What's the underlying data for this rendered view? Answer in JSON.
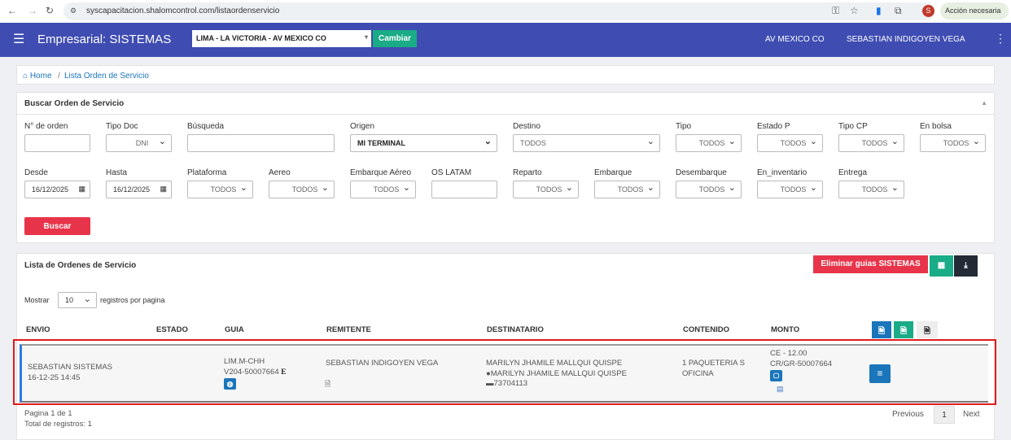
{
  "browser": {
    "url": "syscapacitacion.shalomcontrol.com/listaordenservicio",
    "profile": "S",
    "badge": "Acción necesaria"
  },
  "header": {
    "title": "Empresarial: SISTEMAS",
    "location": "LIMA - LA VICTORIA - AV MEXICO CO",
    "change": "Cambiar",
    "agency": "AV MEXICO CO",
    "user": "SEBASTIAN INDIGOYEN VEGA"
  },
  "breadcrumb": {
    "home": "Home",
    "sep": "/",
    "current": "Lista Orden de Servicio"
  },
  "search": {
    "title": "Buscar Orden de Servicio",
    "button": "Buscar",
    "row1": [
      {
        "label": "N° de orden",
        "value": ""
      },
      {
        "label": "Tipo Doc",
        "value": "DNI"
      },
      {
        "label": "Búsqueda",
        "value": ""
      },
      {
        "label": "Origen",
        "value": "MI TERMINAL"
      },
      {
        "label": "Destino",
        "value": "TODOS"
      },
      {
        "label": "Tipo",
        "value": "TODOS"
      },
      {
        "label": "Estado P",
        "value": "TODOS"
      },
      {
        "label": "Tipo CP",
        "value": "TODOS"
      },
      {
        "label": "En bolsa",
        "value": "TODOS"
      }
    ],
    "row2": [
      {
        "label": "Desde",
        "value": "16/12/2025"
      },
      {
        "label": "Hasta",
        "value": "16/12/2025"
      },
      {
        "label": "Plataforma",
        "value": "TODOS"
      },
      {
        "label": "Aereo",
        "value": "TODOS"
      },
      {
        "label": "Embarque Aéreo",
        "value": "TODOS"
      },
      {
        "label": "OS LATAM",
        "value": ""
      },
      {
        "label": "Reparto",
        "value": "TODOS"
      },
      {
        "label": "Embarque",
        "value": "TODOS"
      },
      {
        "label": "Desembarque",
        "value": "TODOS"
      },
      {
        "label": "En_inventario",
        "value": "TODOS"
      },
      {
        "label": "Entrega",
        "value": "TODOS"
      }
    ]
  },
  "list": {
    "title": "Lista de Ordenes de Servicio",
    "delete": "Eliminar guias SISTEMAS",
    "show": "Mostrar",
    "per_page": "10",
    "per_page_suffix": "registros por pagina",
    "columns": [
      "ENVIO",
      "ESTADO",
      "GUIA",
      "REMITENTE",
      "DESTINATARIO",
      "CONTENIDO",
      "MONTO"
    ],
    "row": {
      "envio": [
        "SEBASTIAN SISTEMAS",
        "16-12-25 14:45"
      ],
      "guia": [
        "LIM.M-CHH",
        "V204-50007664"
      ],
      "guia_mark": "E",
      "remitente": "SEBASTIAN INDIGOYEN VEGA",
      "destinatario": [
        "MARILYN JHAMILE MALLQUI QUISPE",
        "MARILYN JHAMILE MALLQUI QUISPE",
        "73704113"
      ],
      "contenido": [
        "1 PAQUETERIA S",
        "OFICINA"
      ],
      "monto": [
        "CE - 12.00",
        "CR/GR-50007664"
      ]
    },
    "page_info": "Pagina 1 de 1",
    "total": "Total de registros: 1",
    "prev": "Previous",
    "page": "1",
    "next": "Next"
  },
  "colors": {
    "header": "#3f4db2",
    "green": "#1aab87",
    "red": "#e8344a",
    "blue": "#1b75bb",
    "dark": "#222b36"
  }
}
